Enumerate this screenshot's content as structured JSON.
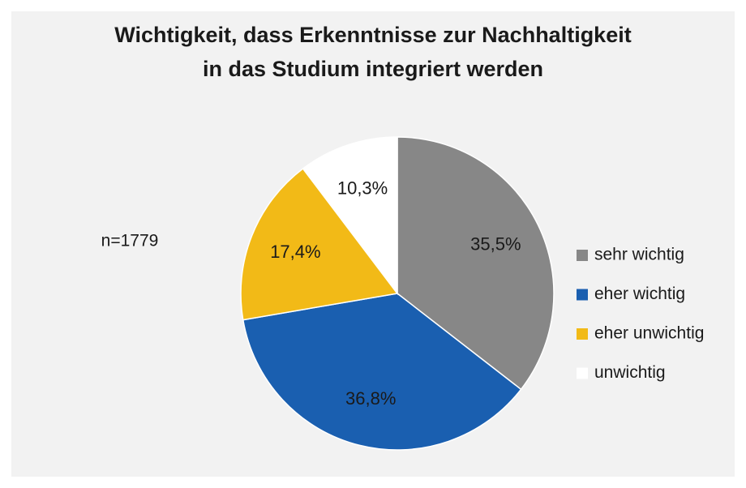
{
  "chart_data": {
    "type": "pie",
    "title": "Wichtigkeit, dass Erkenntnisse zur Nachhaltigkeit in das Studium integriert werden",
    "annotation": "n=1779",
    "categories": [
      "sehr wichtig",
      "eher wichtig",
      "eher unwichtig",
      "unwichtig"
    ],
    "values": [
      35.5,
      36.8,
      17.4,
      10.3
    ],
    "value_labels": [
      "35,5%",
      "36,8%",
      "17,4%",
      "10,3%"
    ],
    "colors": [
      "#878787",
      "#1a5fb0",
      "#f2ba17",
      "#ffffff"
    ],
    "legend": "right"
  }
}
